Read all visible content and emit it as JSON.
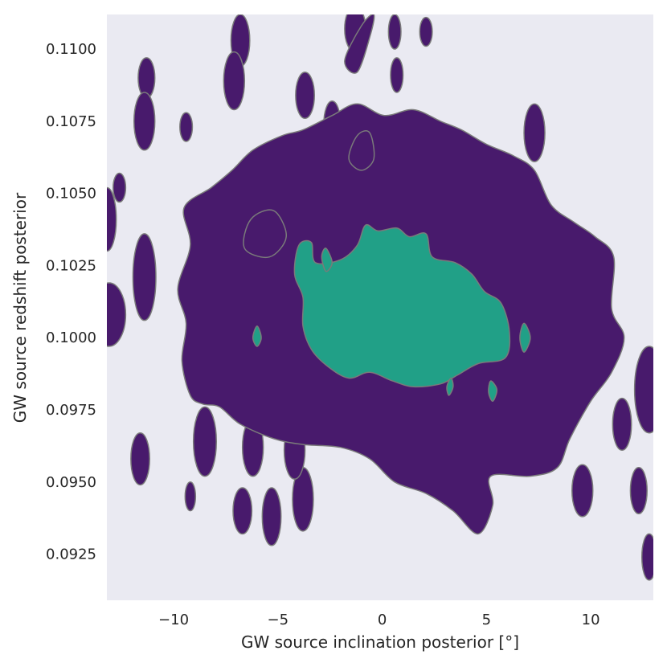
{
  "chart_data": {
    "type": "contour",
    "title": "",
    "xlabel": "GW source inclination posterior [°]",
    "ylabel": "GW source redshift posterior",
    "xlim": [
      -13.2,
      13.0
    ],
    "ylim": [
      0.0909,
      0.1112
    ],
    "x_ticks": [
      -10,
      -5,
      0,
      5,
      10
    ],
    "x_tick_labels": [
      "−10",
      "−5",
      "0",
      "5",
      "10"
    ],
    "y_ticks": [
      0.0925,
      0.095,
      0.0975,
      0.1,
      0.1025,
      0.105,
      0.1075,
      0.11
    ],
    "y_tick_labels": [
      "0.0925",
      "0.0950",
      "0.0975",
      "0.1000",
      "0.1025",
      "0.1050",
      "0.1075",
      "0.1100"
    ],
    "grid": false,
    "background_color": "#eaeaf2",
    "levels": [
      {
        "level": "outer",
        "color": "#481a6c",
        "edge": "#7a7a7a"
      },
      {
        "level": "inner",
        "color": "#21a087",
        "edge": "#7a7a7a"
      }
    ],
    "regions": [
      {
        "level": "outer",
        "points": [
          [
            -9.2,
            0.098
          ],
          [
            -9.6,
            0.0992
          ],
          [
            -9.4,
            0.1005
          ],
          [
            -9.8,
            0.1017
          ],
          [
            -9.2,
            0.1032
          ],
          [
            -9.5,
            0.1045
          ],
          [
            -8.2,
            0.1052
          ],
          [
            -7.2,
            0.1058
          ],
          [
            -6.2,
            0.1065
          ],
          [
            -4.8,
            0.107
          ],
          [
            -3.8,
            0.1072
          ],
          [
            -2.4,
            0.1077
          ],
          [
            -1.2,
            0.1081
          ],
          [
            0.1,
            0.1077
          ],
          [
            1.5,
            0.1079
          ],
          [
            2.8,
            0.1075
          ],
          [
            3.8,
            0.1072
          ],
          [
            5.0,
            0.1067
          ],
          [
            6.3,
            0.1063
          ],
          [
            7.3,
            0.1058
          ],
          [
            8.1,
            0.1046
          ],
          [
            9.2,
            0.104
          ],
          [
            10.2,
            0.1035
          ],
          [
            11.1,
            0.1028
          ],
          [
            11.0,
            0.101
          ],
          [
            11.6,
            0.1
          ],
          [
            11.0,
            0.0988
          ],
          [
            10.0,
            0.0978
          ],
          [
            9.0,
            0.0965
          ],
          [
            8.4,
            0.0955
          ],
          [
            7.1,
            0.0952
          ],
          [
            5.2,
            0.0952
          ],
          [
            5.3,
            0.0942
          ],
          [
            4.6,
            0.0932
          ],
          [
            3.4,
            0.094
          ],
          [
            2.1,
            0.0946
          ],
          [
            0.6,
            0.095
          ],
          [
            -0.6,
            0.0958
          ],
          [
            -2.0,
            0.0962
          ],
          [
            -3.8,
            0.0963
          ],
          [
            -5.2,
            0.0965
          ],
          [
            -6.8,
            0.097
          ],
          [
            -7.8,
            0.0976
          ],
          [
            -8.6,
            0.0977
          ]
        ]
      },
      {
        "level": "outer",
        "points": [
          [
            -6.6,
            0.1031
          ],
          [
            -6.3,
            0.1041
          ],
          [
            -5.2,
            0.1044
          ],
          [
            -4.6,
            0.1035
          ],
          [
            -5.4,
            0.1028
          ]
        ]
      },
      {
        "level": "outer",
        "points": [
          [
            -1.8,
            0.1096
          ],
          [
            -1.0,
            0.1108
          ],
          [
            -0.4,
            0.1112
          ],
          [
            -0.6,
            0.1104
          ],
          [
            -1.2,
            0.1092
          ]
        ]
      },
      {
        "level": "outer",
        "points": [
          [
            -1.6,
            0.1062
          ],
          [
            -1.2,
            0.107
          ],
          [
            -0.6,
            0.1071
          ],
          [
            -0.4,
            0.1062
          ],
          [
            -1.0,
            0.1058
          ]
        ]
      },
      {
        "level": "inner",
        "points": [
          [
            -4.0,
            0.1032
          ],
          [
            -3.4,
            0.1033
          ],
          [
            -3.2,
            0.1026
          ],
          [
            -2.0,
            0.1027
          ],
          [
            -1.2,
            0.1032
          ],
          [
            -0.8,
            0.1039
          ],
          [
            -0.2,
            0.1037
          ],
          [
            0.7,
            0.1038
          ],
          [
            1.3,
            0.1035
          ],
          [
            2.1,
            0.1036
          ],
          [
            2.4,
            0.1028
          ],
          [
            3.5,
            0.1026
          ],
          [
            4.3,
            0.1022
          ],
          [
            4.9,
            0.1016
          ],
          [
            5.7,
            0.1012
          ],
          [
            6.1,
            0.1002
          ],
          [
            5.9,
            0.0993
          ],
          [
            4.6,
            0.0991
          ],
          [
            3.6,
            0.0987
          ],
          [
            2.8,
            0.0984
          ],
          [
            1.5,
            0.0983
          ],
          [
            0.5,
            0.0985
          ],
          [
            -0.6,
            0.0988
          ],
          [
            -1.6,
            0.0986
          ],
          [
            -2.6,
            0.099
          ],
          [
            -3.4,
            0.0996
          ],
          [
            -3.8,
            0.1004
          ],
          [
            -3.8,
            0.1014
          ],
          [
            -4.2,
            0.1022
          ]
        ]
      },
      {
        "level": "inner",
        "points": [
          [
            -2.9,
            0.1028
          ],
          [
            -2.7,
            0.1031
          ],
          [
            -2.4,
            0.1026
          ],
          [
            -2.7,
            0.1023
          ]
        ]
      },
      {
        "level": "inner",
        "points": [
          [
            -6.2,
            0.1
          ],
          [
            -6.0,
            0.1004
          ],
          [
            -5.8,
            0.1
          ],
          [
            -6.0,
            0.0997
          ]
        ]
      },
      {
        "level": "inner",
        "points": [
          [
            6.6,
            0.1
          ],
          [
            6.8,
            0.1005
          ],
          [
            7.1,
            0.1
          ],
          [
            6.8,
            0.0995
          ]
        ]
      },
      {
        "level": "inner",
        "points": [
          [
            5.1,
            0.0981
          ],
          [
            5.2,
            0.0985
          ],
          [
            5.5,
            0.0982
          ],
          [
            5.3,
            0.0978
          ]
        ]
      },
      {
        "level": "inner",
        "points": [
          [
            3.1,
            0.0983
          ],
          [
            3.3,
            0.0986
          ],
          [
            3.4,
            0.0983
          ],
          [
            3.2,
            0.098
          ]
        ]
      }
    ],
    "outer_blobs": [
      [
        -6.8,
        0.1103,
        0.45,
        0.0009
      ],
      [
        -7.1,
        0.1089,
        0.5,
        0.001
      ],
      [
        -1.3,
        0.1107,
        0.5,
        0.0008
      ],
      [
        0.6,
        0.1106,
        0.3,
        0.0006
      ],
      [
        2.1,
        0.1106,
        0.3,
        0.0005
      ],
      [
        0.7,
        0.1091,
        0.3,
        0.0006
      ],
      [
        -11.3,
        0.109,
        0.4,
        0.0007
      ],
      [
        -11.4,
        0.1075,
        0.5,
        0.001
      ],
      [
        -3.7,
        0.1084,
        0.45,
        0.0008
      ],
      [
        -2.4,
        0.1074,
        0.4,
        0.0008
      ],
      [
        -9.4,
        0.1073,
        0.3,
        0.0005
      ],
      [
        7.3,
        0.1071,
        0.5,
        0.001
      ],
      [
        -12.6,
        0.1052,
        0.3,
        0.0005
      ],
      [
        -13.2,
        0.1041,
        0.45,
        0.0011
      ],
      [
        -11.4,
        0.1021,
        0.55,
        0.0015
      ],
      [
        -13.1,
        0.1008,
        0.8,
        0.0011
      ],
      [
        12.8,
        0.0982,
        0.7,
        0.0015
      ],
      [
        11.5,
        0.097,
        0.45,
        0.0009
      ],
      [
        -11.6,
        0.0958,
        0.45,
        0.0009
      ],
      [
        -9.2,
        0.0945,
        0.25,
        0.0005
      ],
      [
        -6.7,
        0.094,
        0.45,
        0.0008
      ],
      [
        -5.3,
        0.0938,
        0.45,
        0.001
      ],
      [
        -3.8,
        0.0944,
        0.5,
        0.0011
      ],
      [
        9.6,
        0.0947,
        0.5,
        0.0009
      ],
      [
        12.3,
        0.0947,
        0.4,
        0.0008
      ],
      [
        12.8,
        0.0924,
        0.35,
        0.0008
      ],
      [
        -8.5,
        0.0964,
        0.55,
        0.0012
      ],
      [
        -6.2,
        0.0962,
        0.5,
        0.001
      ],
      [
        -4.2,
        0.0961,
        0.5,
        0.001
      ]
    ]
  }
}
